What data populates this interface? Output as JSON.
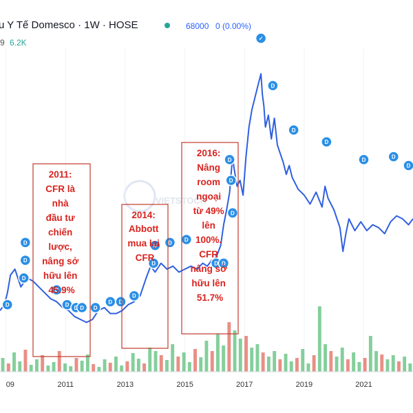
{
  "header": {
    "title": "u Y Tế Domesco · 1W · HOSE",
    "price_label": "68000",
    "change_label": "0 (0.00%)",
    "left_fragment": "9",
    "volume_label": "6.2K",
    "accent_color": "#2962ff",
    "up_color": "#26a69a"
  },
  "watermark": "VIETSTOCK",
  "chart_data": {
    "type": "line",
    "title": "",
    "xlabel": "",
    "ylabel": "",
    "x_ticks": [
      "09",
      "2011",
      "2013",
      "2015",
      "2017",
      "2019",
      "2021"
    ],
    "x_tick_years": [
      2009.0,
      2011.0,
      2013.0,
      2015.0,
      2017.0,
      2019.0,
      2021.0
    ],
    "x_range": [
      2008.8,
      2022.65
    ],
    "y_range": [
      0,
      100
    ],
    "line_color": "#2f5fe0",
    "series": [
      {
        "x": [
          2008.8,
          2008.95,
          2009.05,
          2009.15,
          2009.3,
          2009.5,
          2009.7,
          2009.9,
          2010.1,
          2010.3,
          2010.5,
          2010.7,
          2010.9,
          2011.1,
          2011.3,
          2011.5,
          2011.7,
          2011.9,
          2012.1,
          2012.3,
          2012.5,
          2012.7,
          2012.9,
          2013.1,
          2013.3,
          2013.5,
          2013.7,
          2013.85,
          2014.0,
          2014.2,
          2014.4,
          2014.6,
          2014.8,
          2015.0,
          2015.2,
          2015.4,
          2015.6,
          2015.75,
          2015.9,
          2016.05,
          2016.2,
          2016.3,
          2016.4,
          2016.5,
          2016.55,
          2016.6,
          2016.65,
          2016.75,
          2016.85,
          2016.95,
          2017.05,
          2017.15,
          2017.25,
          2017.35,
          2017.45,
          2017.55,
          2017.6,
          2017.65,
          2017.7,
          2017.8,
          2017.9,
          2018.0,
          2018.1,
          2018.2,
          2018.3,
          2018.4,
          2018.5,
          2018.6,
          2018.8,
          2019.0,
          2019.2,
          2019.4,
          2019.6,
          2019.7,
          2019.8,
          2020.0,
          2020.2,
          2020.3,
          2020.4,
          2020.5,
          2020.7,
          2020.9,
          2021.1,
          2021.3,
          2021.5,
          2021.7,
          2021.9,
          2022.1,
          2022.3,
          2022.5,
          2022.65
        ],
        "y": [
          16,
          18,
          22,
          28,
          30,
          24,
          27,
          26,
          24,
          22,
          20,
          19,
          17,
          16,
          14,
          13,
          12,
          13,
          16,
          17,
          15,
          15,
          16,
          18,
          19,
          21,
          27,
          31,
          29,
          32,
          30,
          31,
          29,
          30,
          31,
          30,
          32,
          31,
          33,
          34,
          38,
          45,
          50,
          56,
          62,
          68,
          64,
          58,
          60,
          55,
          68,
          78,
          84,
          88,
          92,
          96,
          89,
          85,
          78,
          82,
          74,
          81,
          72,
          69,
          66,
          62,
          65,
          61,
          57,
          55,
          52,
          56,
          51,
          58,
          54,
          50,
          44,
          36,
          42,
          47,
          43,
          46,
          43,
          45,
          44,
          42,
          46,
          48,
          47,
          45,
          47
        ]
      }
    ],
    "volume": {
      "values": [
        0.2,
        0.12,
        0.28,
        0.15,
        0.32,
        0.1,
        0.18,
        0.24,
        0.09,
        0.14,
        0.3,
        0.12,
        0.08,
        0.2,
        0.16,
        0.25,
        0.11,
        0.07,
        0.18,
        0.13,
        0.22,
        0.09,
        0.15,
        0.27,
        0.19,
        0.12,
        0.35,
        0.3,
        0.24,
        0.17,
        0.4,
        0.22,
        0.28,
        0.14,
        0.33,
        0.21,
        0.45,
        0.3,
        0.55,
        0.38,
        0.72,
        0.6,
        0.48,
        0.52,
        0.35,
        0.4,
        0.28,
        0.22,
        0.3,
        0.18,
        0.26,
        0.15,
        0.2,
        0.33,
        0.12,
        0.24,
        0.95,
        0.4,
        0.3,
        0.22,
        0.35,
        0.18,
        0.28,
        0.14,
        0.2,
        0.52,
        0.3,
        0.25,
        0.18,
        0.24,
        0.15,
        0.22,
        0.12
      ],
      "up_color": "#5bbf7a",
      "down_color": "#e26a5e"
    },
    "dividends": [
      {
        "x": 2009.05,
        "y": 18
      },
      {
        "x": 2009.6,
        "y": 27
      },
      {
        "x": 2009.65,
        "y": 33
      },
      {
        "x": 2009.65,
        "y": 39
      },
      {
        "x": 2010.7,
        "y": 23
      },
      {
        "x": 2011.05,
        "y": 18
      },
      {
        "x": 2011.35,
        "y": 17
      },
      {
        "x": 2011.55,
        "y": 17
      },
      {
        "x": 2012.0,
        "y": 17
      },
      {
        "x": 2012.5,
        "y": 19
      },
      {
        "x": 2012.85,
        "y": 19
      },
      {
        "x": 2013.3,
        "y": 21
      },
      {
        "x": 2013.95,
        "y": 32
      },
      {
        "x": 2014.0,
        "y": 38
      },
      {
        "x": 2014.5,
        "y": 39
      },
      {
        "x": 2015.05,
        "y": 40
      },
      {
        "x": 2016.05,
        "y": 32
      },
      {
        "x": 2016.3,
        "y": 32
      },
      {
        "x": 2016.6,
        "y": 49
      },
      {
        "x": 2016.55,
        "y": 60
      },
      {
        "x": 2016.5,
        "y": 67
      },
      {
        "x": 2017.55,
        "y": 108
      },
      {
        "x": 2017.95,
        "y": 92
      },
      {
        "x": 2018.65,
        "y": 77
      },
      {
        "x": 2019.75,
        "y": 73
      },
      {
        "x": 2021.0,
        "y": 67
      },
      {
        "x": 2022.0,
        "y": 68
      },
      {
        "x": 2022.5,
        "y": 65
      }
    ],
    "dividend_label": "D",
    "dividend_color": "#2a8fe6",
    "peak_marker_label": "✓"
  },
  "annotations": [
    {
      "name": "annotation-2011",
      "lines": [
        "2011:",
        "CFR là",
        "nhà",
        "đầu tư",
        "chiến",
        "lược,",
        "nâng sở",
        "hữu lên",
        "45.9%"
      ]
    },
    {
      "name": "annotation-2014",
      "lines": [
        "2014:",
        "Abbott",
        "mua lại",
        "CFR"
      ]
    },
    {
      "name": "annotation-2016",
      "lines": [
        "2016:",
        "Nâng",
        "room",
        "ngoại",
        "từ 49%",
        "lên",
        "100%.",
        "CFR",
        "nâng sở",
        "hữu lên",
        "51.7%"
      ]
    }
  ],
  "annotation_color": "#d8231f",
  "annotation_border_color": "#c0392b"
}
